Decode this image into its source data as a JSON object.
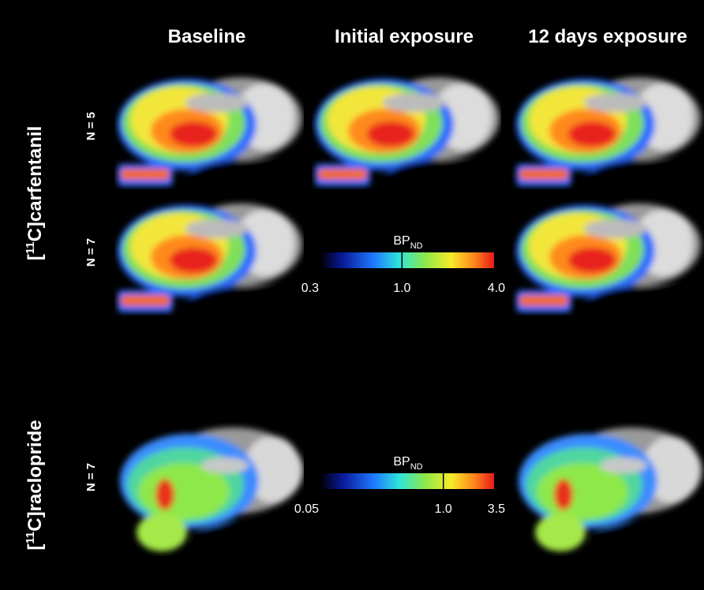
{
  "columns": [
    "Baseline",
    "Initial exposure",
    "12 days exposure"
  ],
  "tracers": [
    {
      "label_open": "[",
      "label_sup": "11",
      "label_rest": "C]carfentanil",
      "rows": [
        "N = 5",
        "N = 7"
      ],
      "colorbar": {
        "label": "BP",
        "label_sub": "ND",
        "lim": [
          0.3,
          4.0
        ],
        "log": true,
        "ticks": [
          {
            "value": 0.3,
            "label": "0.3"
          },
          {
            "value": 1,
            "label": "1.0"
          },
          {
            "value": 4,
            "label": "4.0"
          }
        ]
      }
    },
    {
      "label_open": "[",
      "label_sup": "11",
      "label_rest": "C]raclopride",
      "rows": [
        "N = 7"
      ],
      "colorbar": {
        "label": "BP",
        "label_sub": "ND",
        "lim": [
          0.05,
          3.5
        ],
        "log": true,
        "ticks": [
          {
            "value": 0.05,
            "label": "0.05"
          },
          {
            "value": 1,
            "label": "1.0"
          },
          {
            "value": 3.5,
            "label": "3.5"
          }
        ]
      }
    }
  ]
}
